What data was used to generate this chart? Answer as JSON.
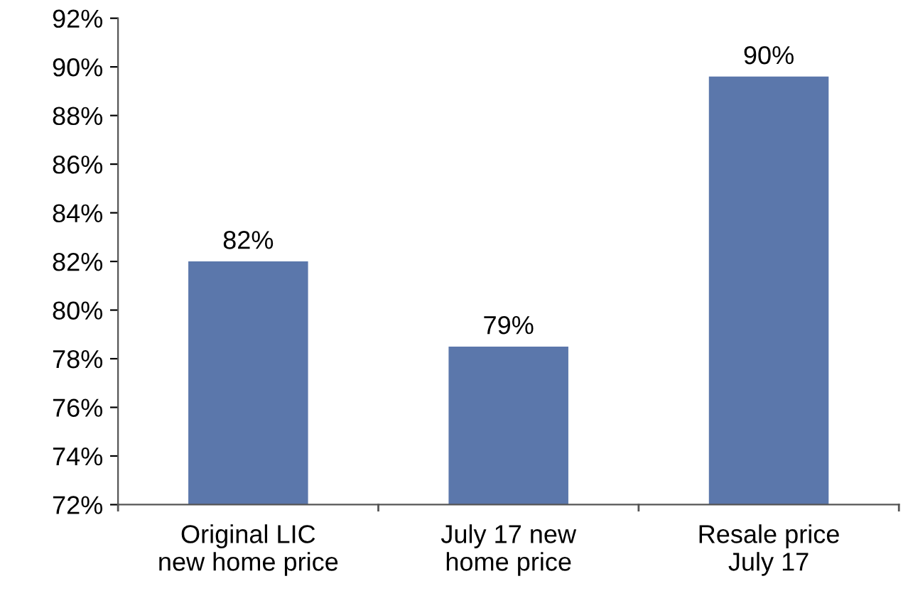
{
  "chart_data": {
    "type": "bar",
    "categories": [
      "Original LIC\nnew home price",
      "July 17 new\nhome price",
      "Resale price\nJuly 17"
    ],
    "values": [
      82.0,
      78.5,
      89.6
    ],
    "value_labels": [
      "82%",
      "79%",
      "90%"
    ],
    "color": "#5b77ab",
    "ylim": [
      72,
      92
    ],
    "yticks": [
      {
        "value": 72,
        "label": "72%"
      },
      {
        "value": 74,
        "label": "74%"
      },
      {
        "value": 76,
        "label": "76%"
      },
      {
        "value": 78,
        "label": "78%"
      },
      {
        "value": 80,
        "label": "80%"
      },
      {
        "value": 82,
        "label": "82%"
      },
      {
        "value": 84,
        "label": "84%"
      },
      {
        "value": 86,
        "label": "86%"
      },
      {
        "value": 88,
        "label": "88%"
      },
      {
        "value": 90,
        "label": "90%"
      },
      {
        "value": 92,
        "label": "92%"
      }
    ],
    "grid": false,
    "legend": false
  }
}
